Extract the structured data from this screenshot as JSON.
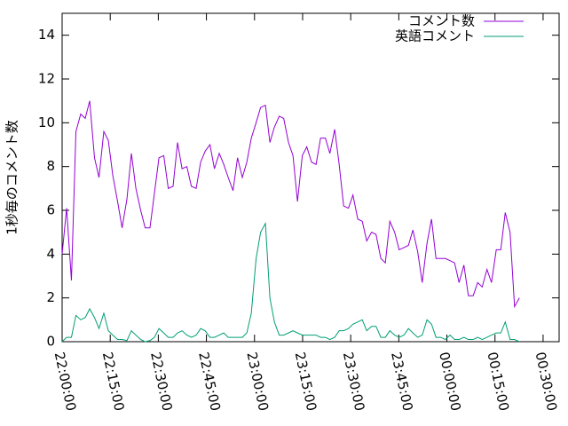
{
  "chart_data": {
    "type": "line",
    "ylabel": "1秒毎のコメント数",
    "xlim": [
      0,
      155
    ],
    "xticks": [
      {
        "value": 0,
        "label": "22:00:00"
      },
      {
        "value": 15,
        "label": "22:15:00"
      },
      {
        "value": 30,
        "label": "22:30:00"
      },
      {
        "value": 45,
        "label": "22:45:00"
      },
      {
        "value": 60,
        "label": "23:00:00"
      },
      {
        "value": 75,
        "label": "23:15:00"
      },
      {
        "value": 90,
        "label": "23:30:00"
      },
      {
        "value": 105,
        "label": "23:45:00"
      },
      {
        "value": 120,
        "label": "00:00:00"
      },
      {
        "value": 135,
        "label": "00:15:00"
      },
      {
        "value": 150,
        "label": "00:30:00"
      }
    ],
    "ylim": [
      0,
      15
    ],
    "yticks": [
      0,
      2,
      4,
      6,
      8,
      10,
      12,
      14
    ],
    "legend": "top right",
    "x": [
      0,
      1.4,
      2.9,
      4.3,
      5.8,
      7.2,
      8.6,
      10.1,
      11.5,
      13,
      14.4,
      15.8,
      17.3,
      18.7,
      20.2,
      21.6,
      23,
      24.5,
      25.9,
      27.4,
      28.8,
      30.2,
      31.7,
      33.1,
      34.6,
      36,
      37.4,
      38.9,
      40.3,
      41.8,
      43.2,
      44.6,
      46.1,
      47.5,
      49,
      50.4,
      51.8,
      53.3,
      54.7,
      56.2,
      57.6,
      59,
      60.5,
      61.9,
      63.4,
      64.8,
      66.2,
      67.7,
      69.1,
      70.6,
      72,
      73.4,
      74.9,
      76.3,
      77.8,
      79.2,
      80.6,
      82.1,
      83.5,
      85,
      86.4,
      87.8,
      89.3,
      90.7,
      92.2,
      93.6,
      95,
      96.5,
      97.9,
      99.4,
      100.8,
      102.2,
      103.7,
      105.1,
      106.6,
      108,
      109.4,
      110.9,
      112.3,
      113.8,
      115.2,
      116.6,
      118.1,
      119.5,
      121,
      122.4,
      123.8,
      125.3,
      126.7,
      128.2,
      129.6,
      131,
      132.5,
      133.9,
      135.4,
      136.8,
      138.2,
      139.7,
      141.1,
      142.6
    ],
    "series": [
      {
        "name": "コメント数",
        "color": "#9400d3",
        "values": [
          4.0,
          6.1,
          2.8,
          9.6,
          10.4,
          10.2,
          11.0,
          8.4,
          7.5,
          9.6,
          9.2,
          7.6,
          6.4,
          5.2,
          6.5,
          8.6,
          7.0,
          6.0,
          5.2,
          5.2,
          6.8,
          8.4,
          8.5,
          7.0,
          7.1,
          9.1,
          7.9,
          8.0,
          7.1,
          7.0,
          8.2,
          8.7,
          9.0,
          7.9,
          8.6,
          8.1,
          7.5,
          6.9,
          8.4,
          7.5,
          8.2,
          9.3,
          10.0,
          10.7,
          10.8,
          9.1,
          9.8,
          10.3,
          10.2,
          9.1,
          8.5,
          6.4,
          8.5,
          8.9,
          8.2,
          8.1,
          9.3,
          9.3,
          8.6,
          9.7,
          8.1,
          6.2,
          6.1,
          6.7,
          5.6,
          5.5,
          4.6,
          5.0,
          4.9,
          3.8,
          3.6,
          5.5,
          5.0,
          4.2,
          4.3,
          4.4,
          5.1,
          4.1,
          2.7,
          4.5,
          5.6,
          3.8,
          3.8,
          3.8,
          3.7,
          3.6,
          2.7,
          3.5,
          2.1,
          2.1,
          2.7,
          2.5,
          3.3,
          2.7,
          4.2,
          4.2,
          5.9,
          5.0,
          1.6,
          2.0
        ]
      },
      {
        "name": "英語コメント",
        "color": "#009e73",
        "values": [
          0,
          0.2,
          0.2,
          1.2,
          1.0,
          1.1,
          1.5,
          1.1,
          0.6,
          1.3,
          0.5,
          0.3,
          0.1,
          0.1,
          0.05,
          0.5,
          0.3,
          0.1,
          0,
          0.05,
          0.2,
          0.6,
          0.4,
          0.2,
          0.2,
          0.4,
          0.5,
          0.3,
          0.2,
          0.3,
          0.6,
          0.5,
          0.2,
          0.2,
          0.3,
          0.4,
          0.2,
          0.2,
          0.2,
          0.2,
          0.4,
          1.3,
          3.8,
          5.0,
          5.4,
          2.0,
          0.9,
          0.3,
          0.3,
          0.4,
          0.5,
          0.4,
          0.3,
          0.3,
          0.3,
          0.3,
          0.2,
          0.2,
          0.1,
          0.2,
          0.5,
          0.5,
          0.6,
          0.8,
          0.9,
          1.0,
          0.5,
          0.7,
          0.7,
          0.2,
          0.2,
          0.5,
          0.3,
          0.2,
          0.3,
          0.6,
          0.4,
          0.2,
          0.3,
          1.0,
          0.8,
          0.2,
          0.2,
          0.1,
          0.3,
          0.1,
          0.1,
          0.2,
          0.1,
          0.1,
          0.2,
          0.1,
          0.2,
          0.3,
          0.4,
          0.4,
          0.9,
          0.1,
          0.1,
          0
        ]
      }
    ]
  }
}
